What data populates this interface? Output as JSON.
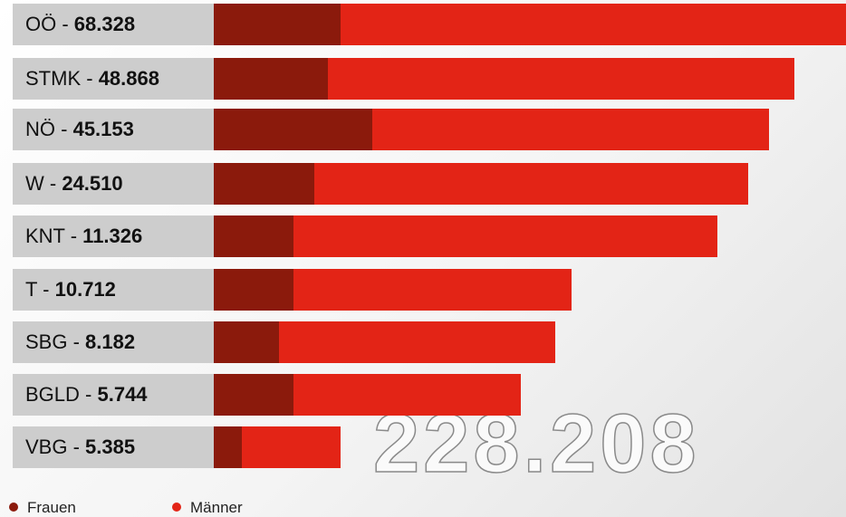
{
  "rows": [
    {
      "label": "OÖ -",
      "value": "68.328"
    },
    {
      "label": "STMK -",
      "value": "48.868"
    },
    {
      "label": "NÖ -",
      "value": "45.153"
    },
    {
      "label": "W -",
      "value": "24.510"
    },
    {
      "label": "KNT -",
      "value": "11.326"
    },
    {
      "label": "T -",
      "value": "10.712"
    },
    {
      "label": "SBG -",
      "value": "8.182"
    },
    {
      "label": "BGLD -",
      "value": "5.744"
    },
    {
      "label": "VBG -",
      "value": "5.385"
    }
  ],
  "total": "228.208",
  "legend": [
    "Frauen",
    "Männer"
  ]
}
